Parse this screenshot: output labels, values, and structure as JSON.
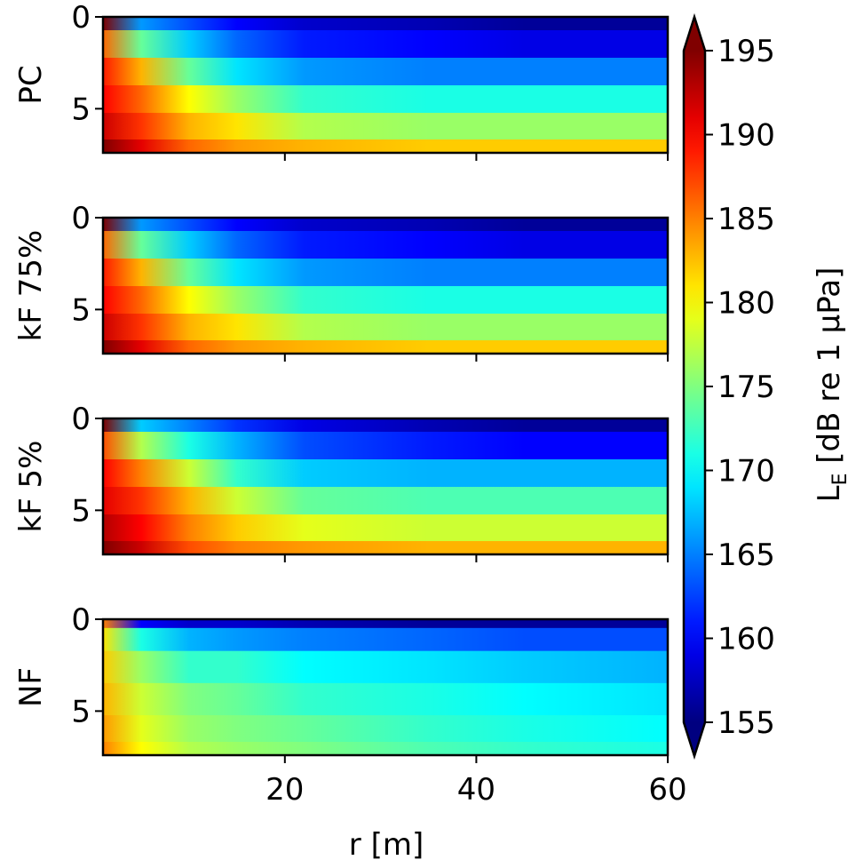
{
  "chart_data": {
    "type": "heatmap",
    "xlabel": "r [m]",
    "x_ticks": [
      20,
      40,
      60
    ],
    "xlim": [
      1,
      60
    ],
    "y_ticks": [
      0,
      5
    ],
    "ylim": [
      7.4,
      0
    ],
    "panels": [
      {
        "label": "PC",
        "layers": [
          {
            "depth": 0.0,
            "le": [
              196,
              166,
              163,
              160,
              158,
              157,
              156,
              156
            ]
          },
          {
            "depth": 1.5,
            "le": [
              186,
              174,
              168,
              164,
              161,
              160,
              159,
              159
            ]
          },
          {
            "depth": 3.0,
            "le": [
              189,
              183,
              174,
              169,
              166,
              165,
              165,
              165
            ]
          },
          {
            "depth": 4.5,
            "le": [
              190,
              186,
              180,
              176,
              172,
              171,
              171,
              171
            ]
          },
          {
            "depth": 6.0,
            "le": [
              192,
              188,
              183,
              181,
              177,
              176,
              176,
              176
            ]
          },
          {
            "depth": 7.4,
            "le": [
              195,
              191,
              186,
              184,
              183,
              182,
              182,
              182
            ]
          }
        ],
        "r": [
          1,
          5,
          10,
          15,
          22,
          35,
          45,
          60
        ]
      },
      {
        "label": "kF 75%",
        "layers": [
          {
            "depth": 0.0,
            "le": [
              196,
              166,
              163,
              160,
              158,
              157,
              156,
              156
            ]
          },
          {
            "depth": 1.5,
            "le": [
              186,
              174,
              168,
              164,
              161,
              160,
              159,
              159
            ]
          },
          {
            "depth": 3.0,
            "le": [
              189,
              183,
              174,
              169,
              166,
              165,
              165,
              165
            ]
          },
          {
            "depth": 4.5,
            "le": [
              190,
              186,
              180,
              176,
              172,
              171,
              171,
              171
            ]
          },
          {
            "depth": 6.0,
            "le": [
              192,
              188,
              183,
              181,
              177,
              176,
              176,
              176
            ]
          },
          {
            "depth": 7.4,
            "le": [
              195,
              191,
              186,
              184,
              183,
              182,
              182,
              182
            ]
          }
        ],
        "r": [
          1,
          5,
          10,
          15,
          22,
          35,
          45,
          60
        ]
      },
      {
        "label": "kF 5%",
        "layers": [
          {
            "depth": 0.0,
            "le": [
              196,
              168,
              165,
              162,
              159,
              157,
              156,
              156
            ]
          },
          {
            "depth": 1.5,
            "le": [
              187,
              177,
              171,
              167,
              163,
              161,
              160,
              160
            ]
          },
          {
            "depth": 3.0,
            "le": [
              190,
              185,
              178,
              172,
              168,
              167,
              167,
              167
            ]
          },
          {
            "depth": 4.5,
            "le": [
              191,
              188,
              183,
              178,
              174,
              173,
              173,
              173
            ]
          },
          {
            "depth": 6.0,
            "le": [
              193,
              190,
              185,
              182,
              179,
              178,
              178,
              178
            ]
          },
          {
            "depth": 7.4,
            "le": [
              195,
              192,
              187,
              185,
              184,
              183,
              183,
              183
            ]
          }
        ],
        "r": [
          1,
          5,
          10,
          15,
          22,
          35,
          45,
          60
        ]
      },
      {
        "label": "NF",
        "layers": [
          {
            "depth": 0.0,
            "le": [
              185,
              160,
              158,
              158,
              157,
              156,
              156,
              156
            ]
          },
          {
            "depth": 1.0,
            "le": [
              181,
              171,
              167,
              166,
              165,
              164,
              163,
              163
            ]
          },
          {
            "depth": 2.5,
            "le": [
              182,
              176,
              172,
              172,
              170,
              169,
              168,
              167
            ]
          },
          {
            "depth": 4.5,
            "le": [
              183,
              178,
              175,
              174,
              172,
              171,
              170,
              169
            ]
          },
          {
            "depth": 6.0,
            "le": [
              184,
              179,
              176,
              175,
              174,
              172,
              171,
              170
            ]
          },
          {
            "depth": 7.4,
            "le": [
              185,
              180,
              177,
              176,
              175,
              173,
              172,
              171
            ]
          }
        ],
        "r": [
          1,
          5,
          10,
          15,
          22,
          35,
          45,
          60
        ]
      }
    ],
    "colorbar": {
      "label_main": "L",
      "label_sub": "E",
      "label_rest": " [dB re 1 μPa]",
      "range": [
        155,
        195
      ],
      "ticks": [
        155,
        160,
        165,
        170,
        175,
        180,
        185,
        190,
        195
      ],
      "extend": "both",
      "colormap": "jet"
    }
  }
}
